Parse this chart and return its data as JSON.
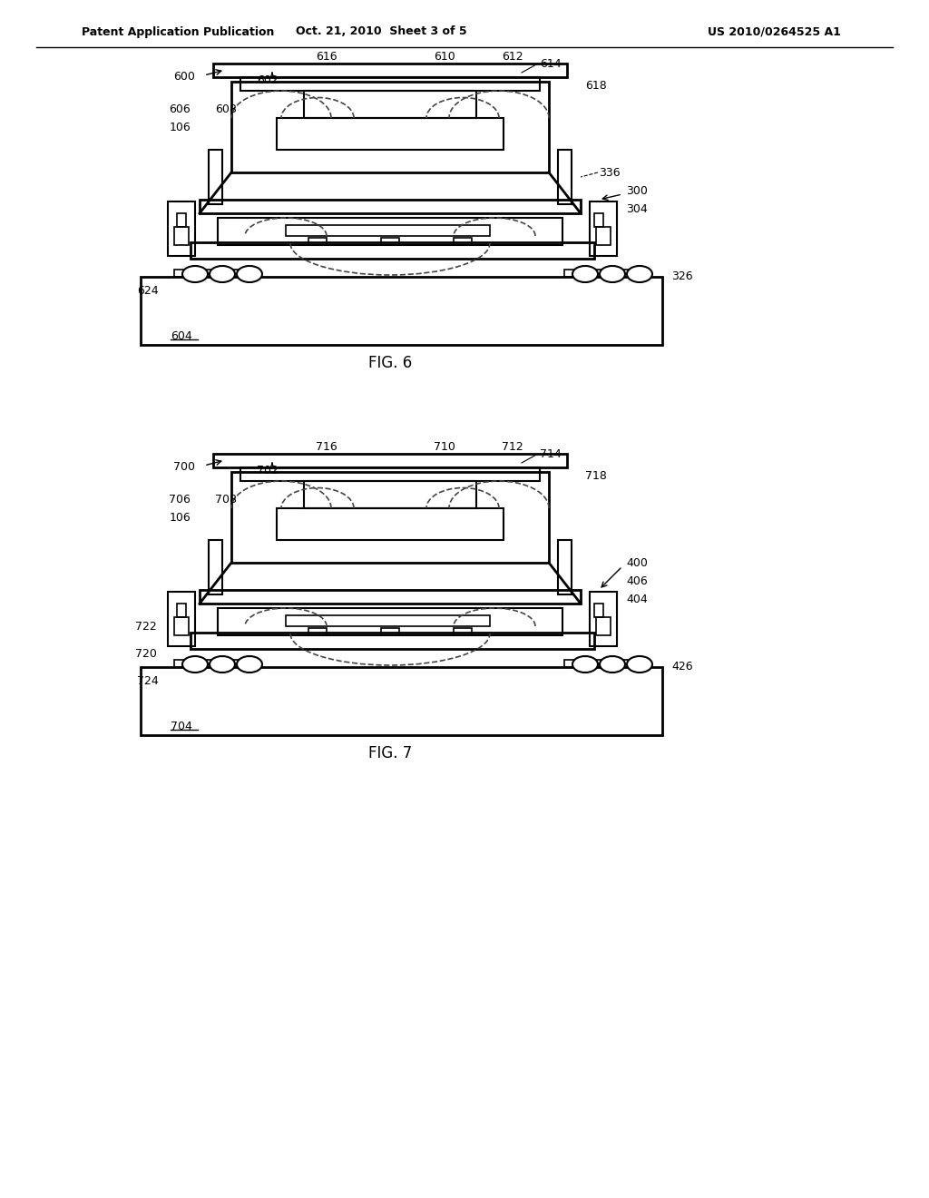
{
  "header_left": "Patent Application Publication",
  "header_mid": "Oct. 21, 2010  Sheet 3 of 5",
  "header_right": "US 2010/0264525 A1",
  "fig6_label": "FIG. 6",
  "fig7_label": "FIG. 7",
  "bg_color": "#ffffff",
  "line_color": "#000000",
  "dashed_color": "#555555"
}
